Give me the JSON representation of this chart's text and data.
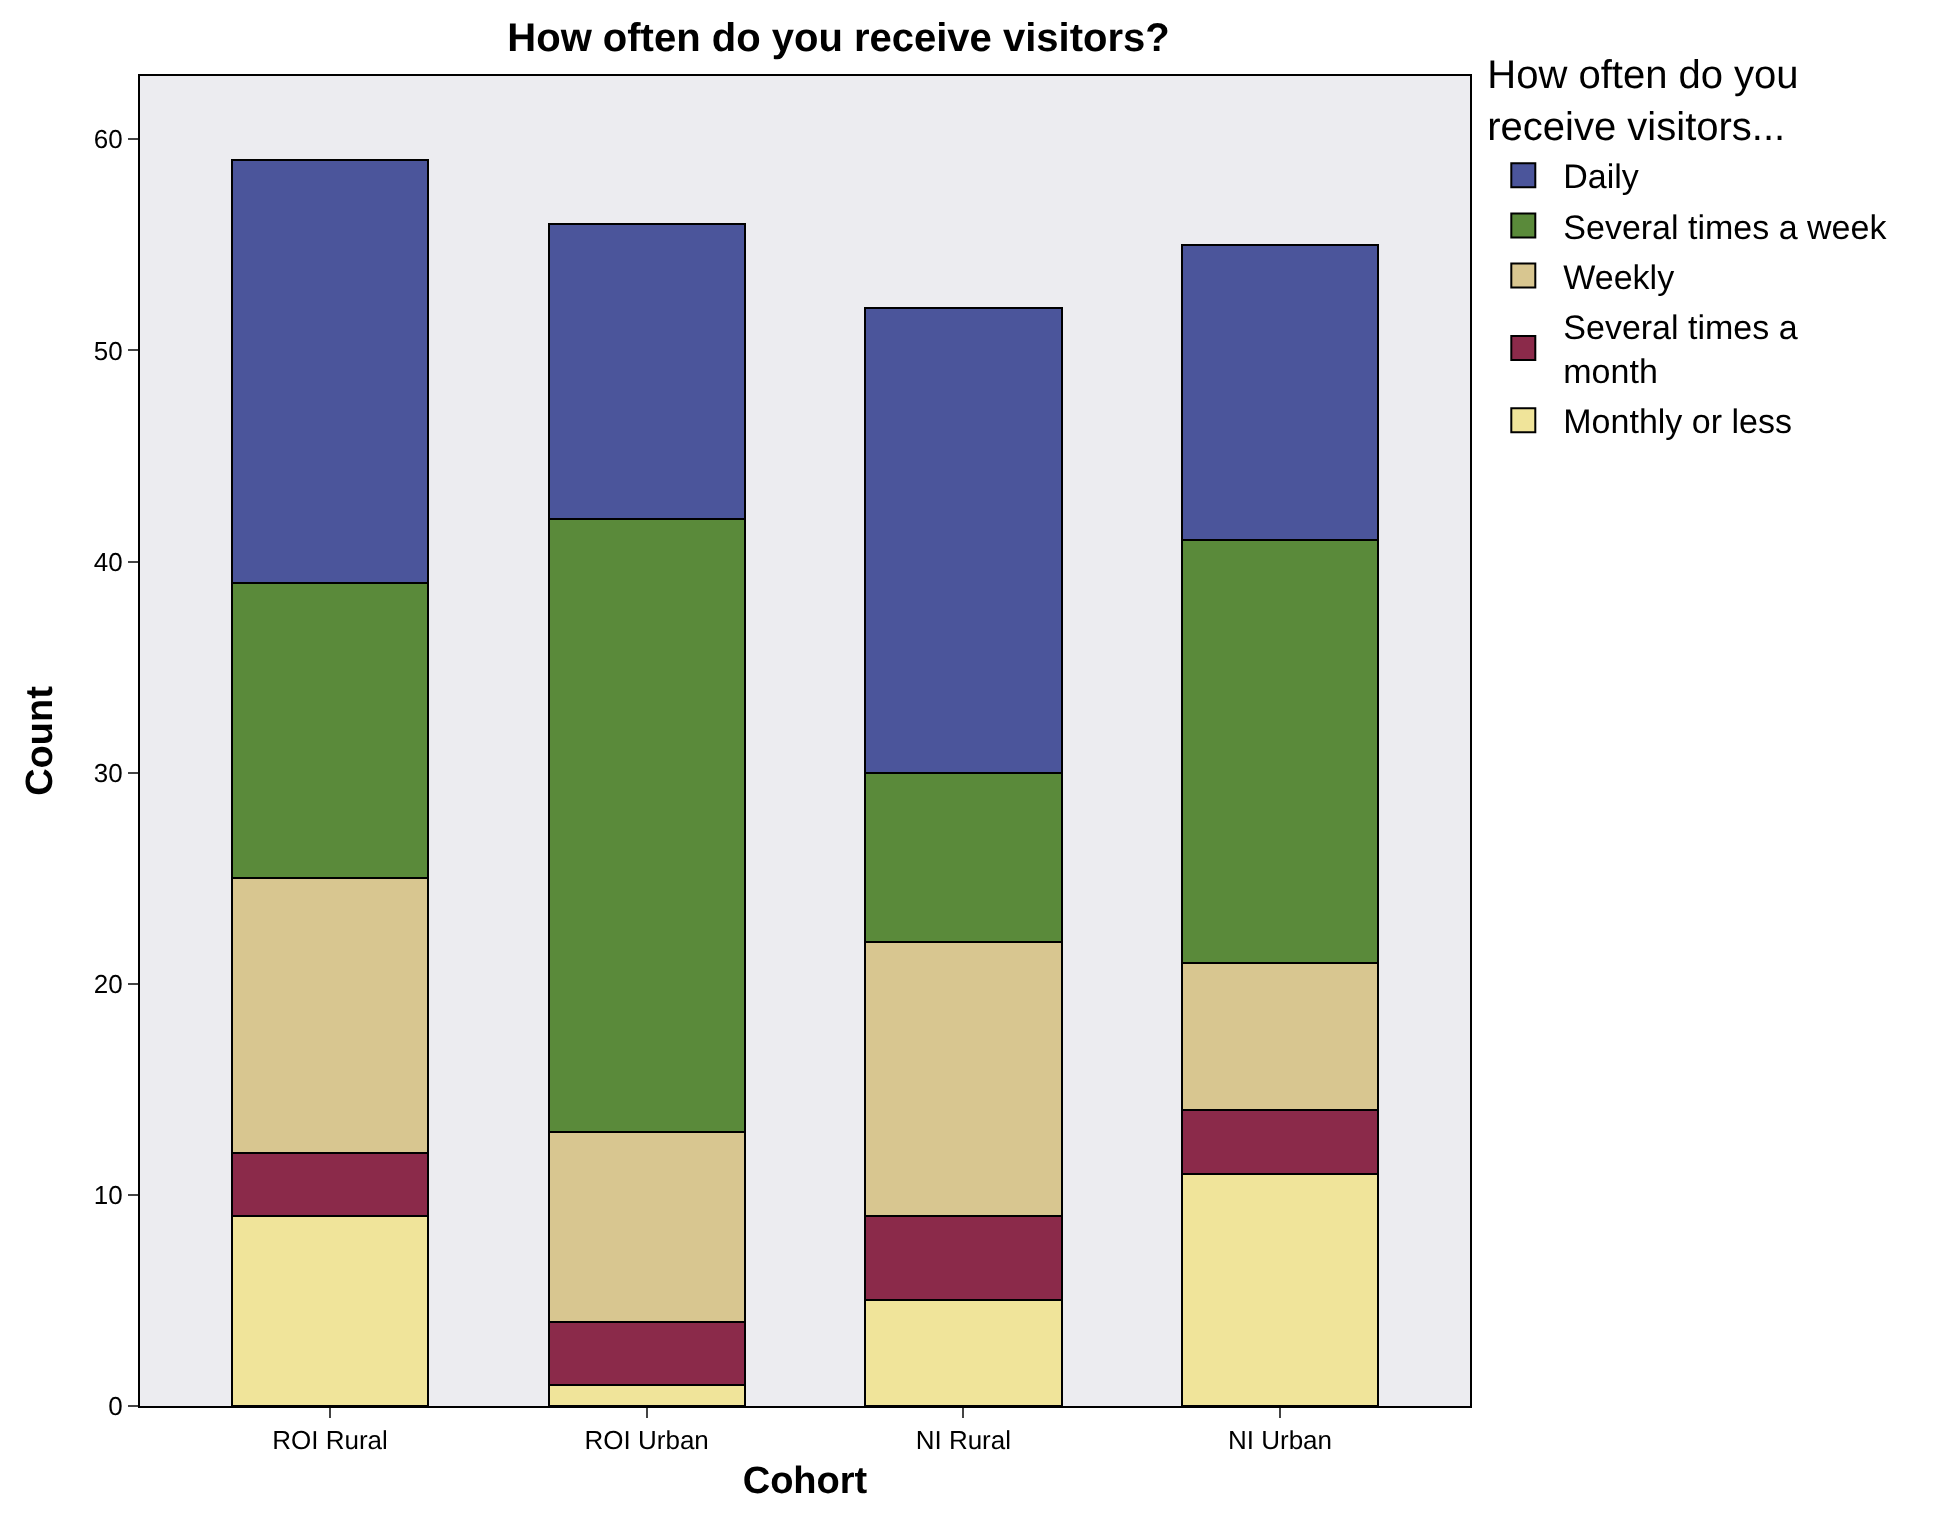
{
  "chart_data": {
    "type": "bar",
    "stacked": true,
    "title": "How often do you receive visitors?",
    "xlabel": "Cohort",
    "ylabel": "Count",
    "legend_title": "How often do you receive visitors...",
    "legend": "top right",
    "grid": false,
    "categories": [
      "ROI Rural",
      "ROI Urban",
      "NI Rural",
      "NI Urban"
    ],
    "ylim": [
      0,
      63
    ],
    "yticks": [
      0,
      10,
      20,
      30,
      40,
      50,
      60
    ],
    "series": [
      {
        "name": "Monthly or less",
        "color": "#f0e49a",
        "values": [
          9,
          1,
          5,
          11
        ]
      },
      {
        "name": "Several times a month",
        "color": "#8b2a4a",
        "values": [
          3,
          3,
          4,
          3
        ]
      },
      {
        "name": "Weekly",
        "color": "#d8c690",
        "values": [
          13,
          9,
          13,
          7
        ]
      },
      {
        "name": "Several times a week",
        "color": "#5a8a3a",
        "values": [
          14,
          29,
          8,
          20
        ]
      },
      {
        "name": "Daily",
        "color": "#4b559b",
        "values": [
          20,
          14,
          22,
          14
        ]
      }
    ]
  }
}
